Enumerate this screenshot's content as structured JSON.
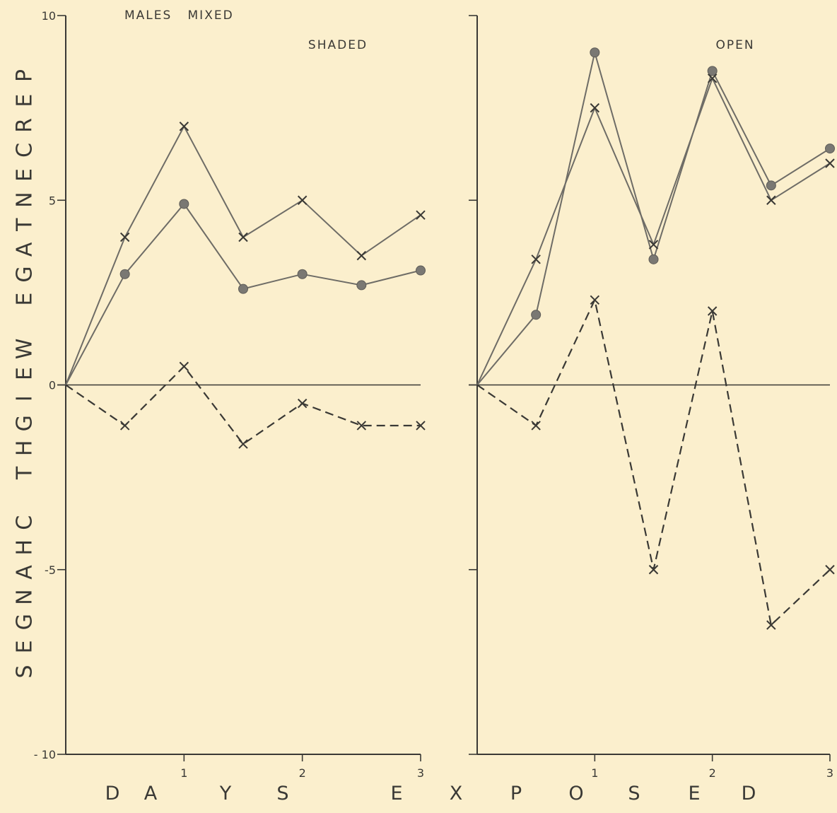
{
  "figure": {
    "header": "MALES   MIXED",
    "ylabel": "PERCENTAGE WEIGHT CHANGES",
    "xlabel": "DAYS EXPOSED"
  },
  "chart_data": [
    {
      "type": "line",
      "title": "SHADED",
      "ylim": [
        -10,
        10
      ],
      "xlim": [
        0,
        3
      ],
      "y_ticks": [
        10,
        5,
        0,
        -5,
        -10
      ],
      "y_tick_labels": [
        "10",
        "5",
        "0",
        "-5",
        "- 10"
      ],
      "x_ticks": [
        1,
        2,
        3
      ],
      "x_tick_labels": [
        "1",
        "2",
        "3"
      ],
      "zero_line": true,
      "series": [
        {
          "style": "solid",
          "marker": "x",
          "x": [
            0,
            0.5,
            1,
            1.5,
            2,
            2.5,
            3
          ],
          "y": [
            0,
            4.0,
            7.0,
            4.0,
            5.0,
            3.5,
            4.6
          ]
        },
        {
          "style": "solid",
          "marker": "dot",
          "x": [
            0,
            0.5,
            1,
            1.5,
            2,
            2.5,
            3
          ],
          "y": [
            0,
            3.0,
            4.9,
            2.6,
            3.0,
            2.7,
            3.1
          ]
        },
        {
          "style": "dashed",
          "marker": "x",
          "x": [
            0,
            0.5,
            1,
            1.5,
            2,
            2.5,
            3
          ],
          "y": [
            0,
            -1.1,
            0.5,
            -1.6,
            -0.5,
            -1.1,
            -1.1
          ]
        }
      ]
    },
    {
      "type": "line",
      "title": "OPEN",
      "ylim": [
        -10,
        10
      ],
      "xlim": [
        0,
        3
      ],
      "y_ticks": [
        10,
        5,
        0,
        -5,
        -10
      ],
      "x_ticks": [
        1,
        2,
        3
      ],
      "x_tick_labels": [
        "1",
        "2",
        "3"
      ],
      "zero_line": true,
      "series": [
        {
          "style": "solid",
          "marker": "dot",
          "x": [
            0,
            0.5,
            1,
            1.5,
            2,
            2.5,
            3
          ],
          "y": [
            0,
            1.9,
            9.0,
            3.4,
            8.5,
            5.4,
            6.4
          ]
        },
        {
          "style": "solid",
          "marker": "x",
          "x": [
            0,
            0.5,
            1,
            1.5,
            2,
            2.5,
            3
          ],
          "y": [
            0,
            3.4,
            7.5,
            3.8,
            8.3,
            5.0,
            6.0
          ]
        },
        {
          "style": "dashed",
          "marker": "x",
          "x": [
            0,
            0.5,
            1,
            1.5,
            2,
            2.5,
            3
          ],
          "y": [
            0,
            -1.1,
            2.3,
            -5.0,
            2.0,
            -6.5,
            -5.0
          ]
        }
      ]
    }
  ]
}
